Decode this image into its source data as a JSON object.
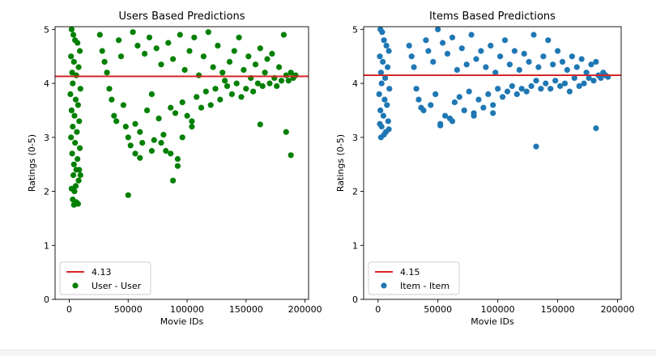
{
  "chart_data": [
    {
      "type": "scatter",
      "title": "Users Based Predictions",
      "xlabel": "Movie IDs",
      "ylabel": "Ratings (0-5)",
      "xlim": [
        -12000,
        203000
      ],
      "ylim": [
        0,
        5.05
      ],
      "xticks": [
        0,
        50000,
        100000,
        150000,
        200000
      ],
      "xtick_labels": [
        "0",
        "50000",
        "100000",
        "150000",
        "200000"
      ],
      "yticks": [
        0,
        1,
        2,
        3,
        4,
        5
      ],
      "ytick_labels": [
        "0",
        "1",
        "2",
        "3",
        "4",
        "5"
      ],
      "grid": false,
      "legend_position": "lower-left",
      "hline": {
        "value": 4.13,
        "label": "4.13",
        "color": "#d62728"
      },
      "series": [
        {
          "name": "User - User",
          "color": "#008000",
          "points": [
            [
              2000,
              5.0
            ],
            [
              3500,
              4.9
            ],
            [
              5000,
              4.8
            ],
            [
              7000,
              4.75
            ],
            [
              9000,
              4.6
            ],
            [
              1500,
              4.5
            ],
            [
              4000,
              4.4
            ],
            [
              8000,
              4.3
            ],
            [
              2500,
              4.2
            ],
            [
              6000,
              4.15
            ],
            [
              3000,
              4.0
            ],
            [
              9500,
              3.9
            ],
            [
              1000,
              3.8
            ],
            [
              5500,
              3.7
            ],
            [
              7500,
              3.6
            ],
            [
              2000,
              3.5
            ],
            [
              4500,
              3.4
            ],
            [
              8500,
              3.3
            ],
            [
              3000,
              3.2
            ],
            [
              6500,
              3.1
            ],
            [
              1500,
              3.0
            ],
            [
              5000,
              2.9
            ],
            [
              9000,
              2.8
            ],
            [
              2500,
              2.7
            ],
            [
              7000,
              2.6
            ],
            [
              4000,
              2.5
            ],
            [
              6000,
              2.4
            ],
            [
              3500,
              2.3
            ],
            [
              8000,
              2.2
            ],
            [
              5500,
              2.1
            ],
            [
              2000,
              2.05
            ],
            [
              4500,
              2.0
            ],
            [
              3000,
              1.85
            ],
            [
              6000,
              1.8
            ],
            [
              4000,
              1.75
            ],
            [
              7500,
              1.77
            ],
            [
              8500,
              2.4
            ],
            [
              9500,
              2.3
            ],
            [
              26000,
              4.9
            ],
            [
              28000,
              4.6
            ],
            [
              30000,
              4.4
            ],
            [
              32000,
              4.2
            ],
            [
              34000,
              3.9
            ],
            [
              36000,
              3.7
            ],
            [
              38000,
              3.4
            ],
            [
              40000,
              3.3
            ],
            [
              42000,
              4.8
            ],
            [
              44000,
              4.5
            ],
            [
              46000,
              3.6
            ],
            [
              48000,
              3.2
            ],
            [
              50000,
              3.0
            ],
            [
              52000,
              2.85
            ],
            [
              54000,
              4.95
            ],
            [
              56000,
              3.25
            ],
            [
              58000,
              4.7
            ],
            [
              60000,
              3.1
            ],
            [
              62000,
              2.9
            ],
            [
              64000,
              4.55
            ],
            [
              66000,
              3.5
            ],
            [
              68000,
              4.85
            ],
            [
              70000,
              3.8
            ],
            [
              72000,
              2.95
            ],
            [
              74000,
              4.65
            ],
            [
              76000,
              3.35
            ],
            [
              78000,
              4.35
            ],
            [
              80000,
              3.05
            ],
            [
              82000,
              2.75
            ],
            [
              84000,
              4.75
            ],
            [
              86000,
              3.55
            ],
            [
              88000,
              4.45
            ],
            [
              90000,
              3.45
            ],
            [
              92000,
              2.6
            ],
            [
              94000,
              4.9
            ],
            [
              96000,
              3.65
            ],
            [
              98000,
              4.25
            ],
            [
              100000,
              3.4
            ],
            [
              102000,
              4.6
            ],
            [
              104000,
              3.3
            ],
            [
              106000,
              4.85
            ],
            [
              108000,
              3.75
            ],
            [
              110000,
              4.15
            ],
            [
              112000,
              3.55
            ],
            [
              114000,
              4.5
            ],
            [
              116000,
              3.85
            ],
            [
              118000,
              4.95
            ],
            [
              120000,
              3.6
            ],
            [
              122000,
              4.3
            ],
            [
              124000,
              3.9
            ],
            [
              126000,
              4.7
            ],
            [
              128000,
              3.7
            ],
            [
              130000,
              4.2
            ],
            [
              132000,
              4.05
            ],
            [
              134000,
              3.95
            ],
            [
              136000,
              4.4
            ],
            [
              138000,
              3.8
            ],
            [
              140000,
              4.6
            ],
            [
              142000,
              4.0
            ],
            [
              144000,
              4.85
            ],
            [
              146000,
              3.75
            ],
            [
              148000,
              4.25
            ],
            [
              150000,
              3.9
            ],
            [
              152000,
              4.5
            ],
            [
              154000,
              4.1
            ],
            [
              156000,
              3.85
            ],
            [
              158000,
              4.35
            ],
            [
              160000,
              4.0
            ],
            [
              162000,
              4.65
            ],
            [
              164000,
              3.95
            ],
            [
              166000,
              4.2
            ],
            [
              168000,
              4.45
            ],
            [
              170000,
              4.0
            ],
            [
              172000,
              4.55
            ],
            [
              174000,
              4.1
            ],
            [
              176000,
              3.95
            ],
            [
              178000,
              4.3
            ],
            [
              180000,
              4.05
            ],
            [
              182000,
              4.9
            ],
            [
              184000,
              4.15
            ],
            [
              186000,
              4.05
            ],
            [
              188000,
              4.2
            ],
            [
              190000,
              4.1
            ],
            [
              192000,
              4.15
            ],
            [
              50000,
              1.93
            ],
            [
              88000,
              2.2
            ],
            [
              92000,
              2.47
            ],
            [
              162000,
              3.24
            ],
            [
              184000,
              3.1
            ],
            [
              188000,
              2.67
            ],
            [
              56000,
              2.7
            ],
            [
              60000,
              2.62
            ],
            [
              70000,
              2.75
            ],
            [
              78000,
              2.9
            ],
            [
              86000,
              2.7
            ],
            [
              96000,
              3.0
            ],
            [
              104000,
              3.2
            ]
          ]
        }
      ]
    },
    {
      "type": "scatter",
      "title": "Items Based Predictions",
      "xlabel": "Movie IDs",
      "ylabel": "Ratings (0-5)",
      "xlim": [
        -12000,
        203000
      ],
      "ylim": [
        0,
        5.05
      ],
      "xticks": [
        0,
        50000,
        100000,
        150000,
        200000
      ],
      "xtick_labels": [
        "0",
        "50000",
        "100000",
        "150000",
        "200000"
      ],
      "yticks": [
        0,
        1,
        2,
        3,
        4,
        5
      ],
      "ytick_labels": [
        "0",
        "1",
        "2",
        "3",
        "4",
        "5"
      ],
      "grid": false,
      "legend_position": "lower-left",
      "hline": {
        "value": 4.15,
        "label": "4.15",
        "color": "#d62728"
      },
      "series": [
        {
          "name": "Item - Item",
          "color": "#1f77b4",
          "points": [
            [
              2000,
              5.0
            ],
            [
              3500,
              4.95
            ],
            [
              5000,
              4.8
            ],
            [
              7000,
              4.7
            ],
            [
              9000,
              4.6
            ],
            [
              1500,
              4.5
            ],
            [
              4000,
              4.4
            ],
            [
              8000,
              4.3
            ],
            [
              2500,
              4.2
            ],
            [
              6000,
              4.1
            ],
            [
              3000,
              4.0
            ],
            [
              9500,
              3.9
            ],
            [
              1000,
              3.8
            ],
            [
              5500,
              3.7
            ],
            [
              7500,
              3.6
            ],
            [
              2000,
              3.5
            ],
            [
              4500,
              3.4
            ],
            [
              8500,
              3.3
            ],
            [
              3000,
              3.2
            ],
            [
              6500,
              3.1
            ],
            [
              2500,
              3.0
            ],
            [
              5000,
              3.05
            ],
            [
              9000,
              3.15
            ],
            [
              1500,
              3.25
            ],
            [
              26000,
              4.7
            ],
            [
              28000,
              4.5
            ],
            [
              30000,
              4.3
            ],
            [
              32000,
              3.9
            ],
            [
              34000,
              3.7
            ],
            [
              36000,
              3.55
            ],
            [
              38000,
              3.5
            ],
            [
              40000,
              4.8
            ],
            [
              42000,
              4.6
            ],
            [
              44000,
              3.6
            ],
            [
              46000,
              4.4
            ],
            [
              48000,
              3.8
            ],
            [
              50000,
              5.0
            ],
            [
              52000,
              3.22
            ],
            [
              54000,
              4.75
            ],
            [
              56000,
              3.4
            ],
            [
              58000,
              4.55
            ],
            [
              60000,
              3.35
            ],
            [
              62000,
              4.85
            ],
            [
              64000,
              3.65
            ],
            [
              66000,
              4.25
            ],
            [
              68000,
              3.75
            ],
            [
              70000,
              4.65
            ],
            [
              72000,
              3.5
            ],
            [
              74000,
              4.35
            ],
            [
              76000,
              3.85
            ],
            [
              78000,
              4.9
            ],
            [
              80000,
              3.45
            ],
            [
              82000,
              4.45
            ],
            [
              84000,
              3.7
            ],
            [
              86000,
              4.6
            ],
            [
              88000,
              3.55
            ],
            [
              90000,
              4.3
            ],
            [
              92000,
              3.8
            ],
            [
              94000,
              4.7
            ],
            [
              96000,
              3.6
            ],
            [
              98000,
              4.2
            ],
            [
              100000,
              3.9
            ],
            [
              102000,
              4.5
            ],
            [
              104000,
              3.75
            ],
            [
              106000,
              4.8
            ],
            [
              108000,
              3.85
            ],
            [
              110000,
              4.35
            ],
            [
              112000,
              3.95
            ],
            [
              114000,
              4.6
            ],
            [
              116000,
              3.8
            ],
            [
              118000,
              4.25
            ],
            [
              120000,
              3.9
            ],
            [
              122000,
              4.55
            ],
            [
              124000,
              3.85
            ],
            [
              126000,
              4.4
            ],
            [
              128000,
              3.95
            ],
            [
              130000,
              4.9
            ],
            [
              132000,
              4.05
            ],
            [
              134000,
              4.3
            ],
            [
              136000,
              3.9
            ],
            [
              138000,
              4.5
            ],
            [
              140000,
              4.0
            ],
            [
              142000,
              4.8
            ],
            [
              144000,
              3.9
            ],
            [
              146000,
              4.35
            ],
            [
              148000,
              4.05
            ],
            [
              150000,
              4.6
            ],
            [
              152000,
              3.95
            ],
            [
              154000,
              4.4
            ],
            [
              156000,
              4.0
            ],
            [
              158000,
              4.25
            ],
            [
              160000,
              3.85
            ],
            [
              162000,
              4.5
            ],
            [
              164000,
              4.1
            ],
            [
              166000,
              4.3
            ],
            [
              168000,
              3.95
            ],
            [
              170000,
              4.45
            ],
            [
              172000,
              4.0
            ],
            [
              174000,
              4.2
            ],
            [
              176000,
              4.1
            ],
            [
              178000,
              4.35
            ],
            [
              180000,
              4.05
            ],
            [
              182000,
              4.4
            ],
            [
              184000,
              4.15
            ],
            [
              186000,
              4.1
            ],
            [
              188000,
              4.2
            ],
            [
              190000,
              4.15
            ],
            [
              192000,
              4.12
            ],
            [
              52000,
              3.25
            ],
            [
              132000,
              2.83
            ],
            [
              182000,
              3.17
            ],
            [
              62000,
              3.3
            ],
            [
              80000,
              3.4
            ],
            [
              96000,
              3.45
            ]
          ]
        }
      ]
    }
  ]
}
